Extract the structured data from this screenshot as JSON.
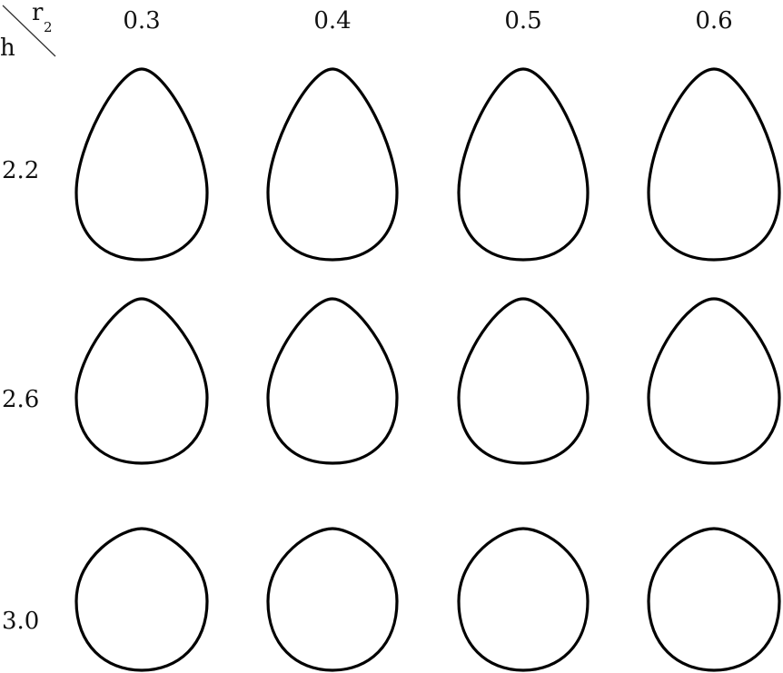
{
  "corner": {
    "row_symbol": "h",
    "col_symbol": "r",
    "col_subscript": "2"
  },
  "columns": [
    "0.3",
    "0.4",
    "0.5",
    "0.6"
  ],
  "rows": [
    "2.2",
    "2.6",
    "3.0"
  ],
  "colors": {
    "stroke": "#000000",
    "background": "#ffffff"
  }
}
